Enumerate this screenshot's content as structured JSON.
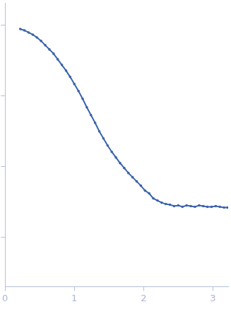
{
  "chart_data": {
    "type": "scatter",
    "x": [
      0.22,
      0.28,
      0.34,
      0.4,
      0.46,
      0.52,
      0.58,
      0.64,
      0.7,
      0.76,
      0.82,
      0.88,
      0.94,
      1.0,
      1.06,
      1.12,
      1.18,
      1.24,
      1.3,
      1.36,
      1.42,
      1.48,
      1.54,
      1.6,
      1.66,
      1.72,
      1.78,
      1.84,
      1.9,
      1.96,
      2.02,
      2.08,
      2.14,
      2.2,
      2.26,
      2.32,
      2.38,
      2.44,
      2.5,
      2.56,
      2.62,
      2.68,
      2.74,
      2.8,
      2.86,
      2.92,
      2.98,
      3.04,
      3.1,
      3.16,
      3.21
    ],
    "values": [
      3.95,
      3.93,
      3.9,
      3.87,
      3.83,
      3.78,
      3.72,
      3.66,
      3.6,
      3.52,
      3.44,
      3.36,
      3.27,
      3.17,
      3.07,
      2.96,
      2.84,
      2.73,
      2.62,
      2.5,
      2.4,
      2.3,
      2.21,
      2.13,
      2.05,
      1.98,
      1.91,
      1.85,
      1.79,
      1.73,
      1.66,
      1.62,
      1.55,
      1.52,
      1.49,
      1.47,
      1.46,
      1.44,
      1.45,
      1.43,
      1.45,
      1.44,
      1.43,
      1.45,
      1.44,
      1.43,
      1.43,
      1.44,
      1.43,
      1.42,
      1.42
    ],
    "color": "#3b63ad",
    "marker": "circle",
    "xlim": [
      0,
      3.22
    ],
    "xticks": [
      0,
      1,
      2,
      3
    ],
    "ylim": [
      0.3,
      4.32
    ],
    "yticks": [
      1,
      2,
      3,
      4
    ],
    "grid": false,
    "tick_labels": "x"
  }
}
